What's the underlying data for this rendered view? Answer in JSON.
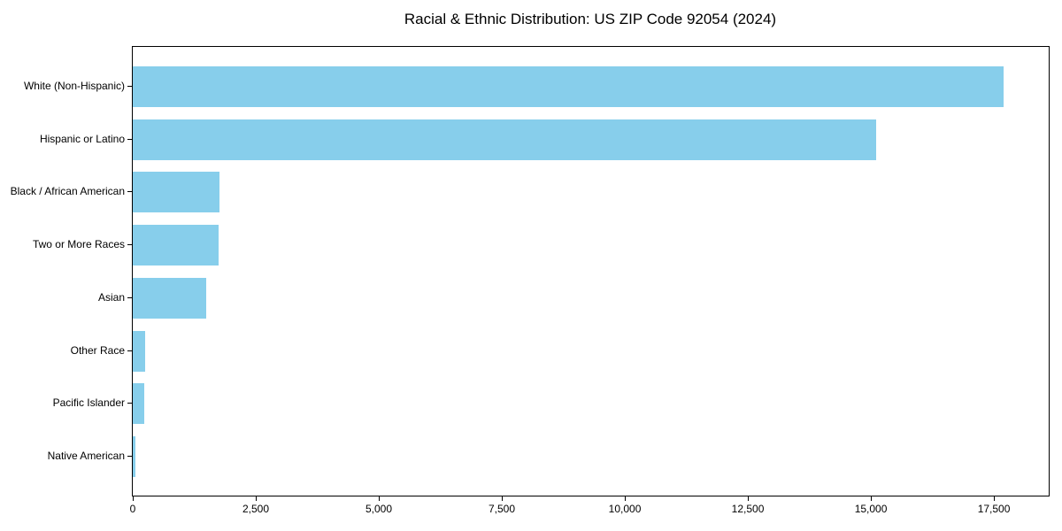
{
  "title": "Racial & Ethnic Distribution: US ZIP Code 92054 (2024)",
  "chart_data": {
    "type": "bar",
    "orientation": "horizontal",
    "title": "Racial & Ethnic Distribution: US ZIP Code 92054 (2024)",
    "categories": [
      "White (Non-Hispanic)",
      "Hispanic or Latino",
      "Black / African American",
      "Two or More Races",
      "Asian",
      "Other Race",
      "Pacific Islander",
      "Native American"
    ],
    "values": [
      17700,
      15100,
      1770,
      1750,
      1500,
      260,
      240,
      50
    ],
    "xlabel": "",
    "ylabel": "",
    "xlim": [
      0,
      18614
    ],
    "xticks": [
      0,
      2500,
      5000,
      7500,
      10000,
      12500,
      15000,
      17500
    ],
    "xtick_labels": [
      "0",
      "2,500",
      "5,000",
      "7,500",
      "10,000",
      "12,500",
      "15,000",
      "17,500"
    ],
    "bar_color": "#87CEEB",
    "background_color": "#ffffff",
    "text_color": "#000000",
    "grid": false,
    "legend": "none"
  }
}
